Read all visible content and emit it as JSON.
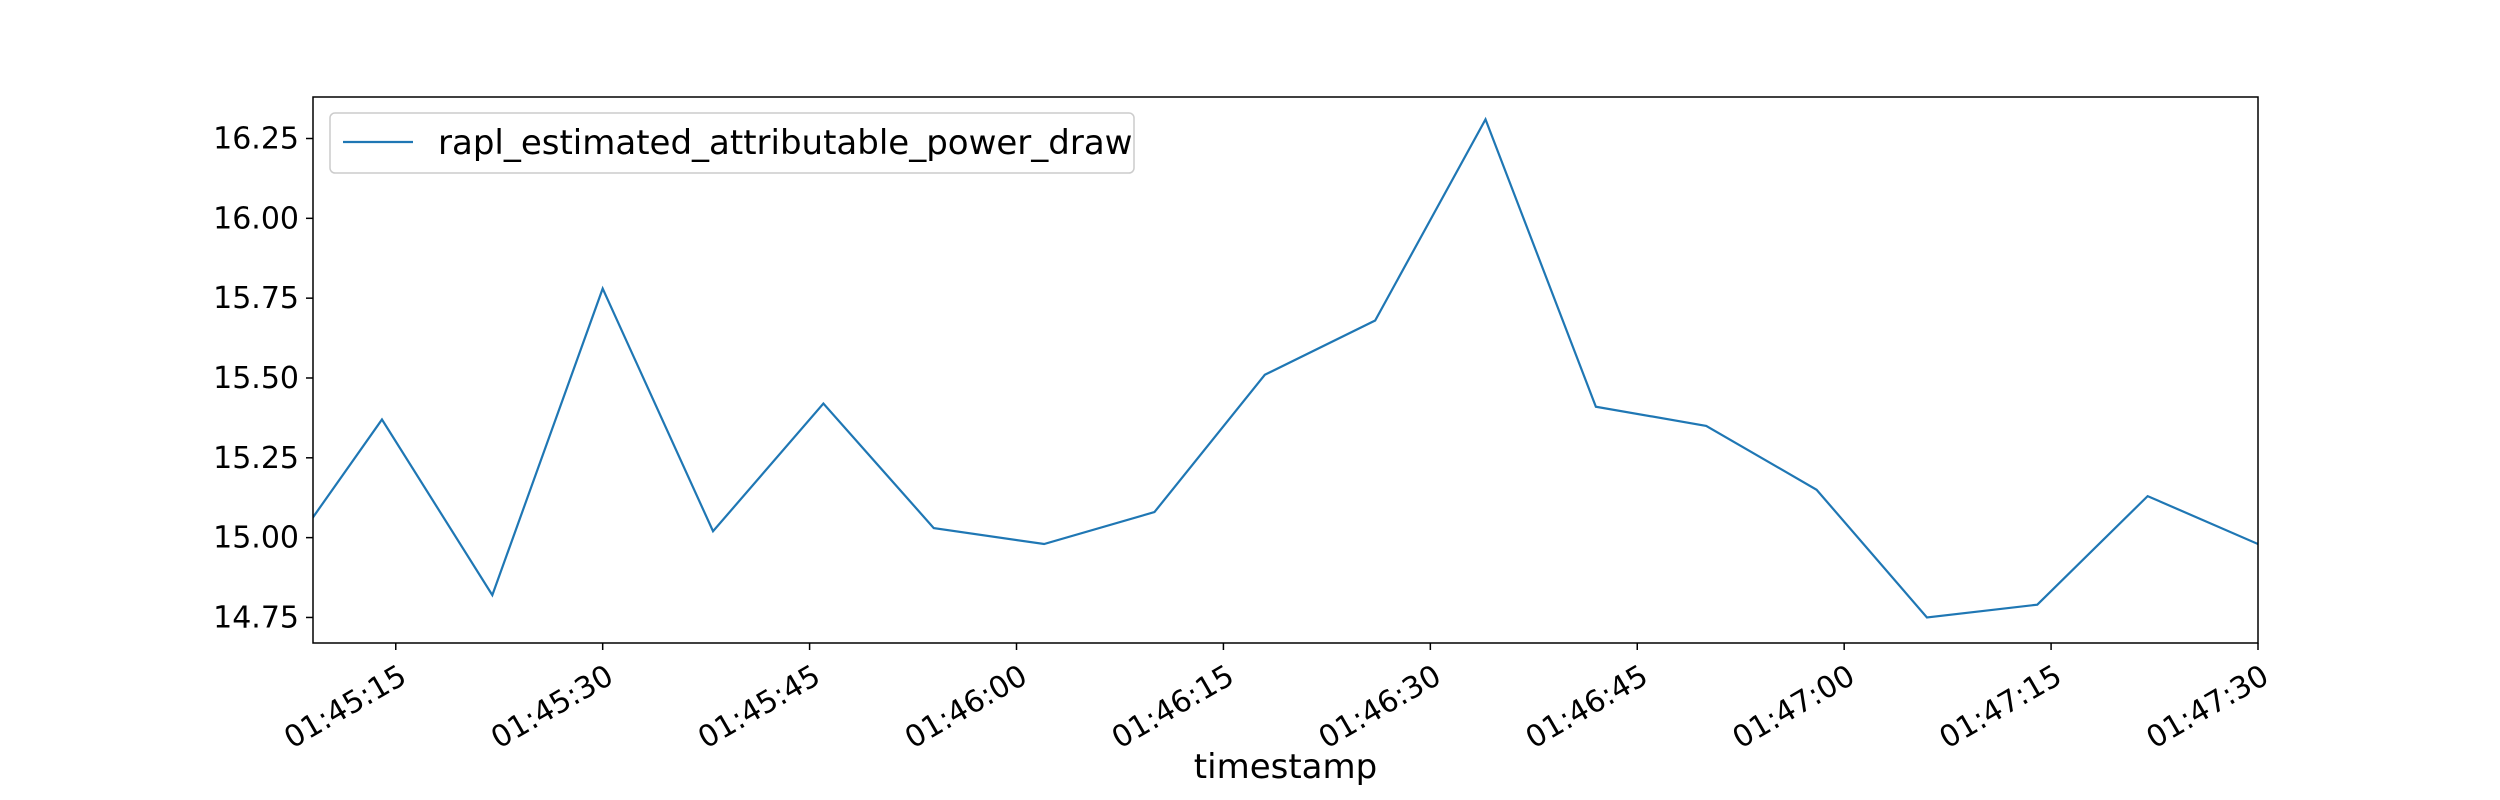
{
  "chart_data": {
    "type": "line",
    "xlabel": "timestamp",
    "ylabel": "",
    "x_unit": "time (HH:MM:SS)",
    "xlim": [
      "01:45:09",
      "01:47:30"
    ],
    "ylim": [
      14.67,
      16.38
    ],
    "x_ticks": [
      "01:45:15",
      "01:45:30",
      "01:45:45",
      "01:46:00",
      "01:46:15",
      "01:46:30",
      "01:46:45",
      "01:47:00",
      "01:47:15",
      "01:47:30"
    ],
    "y_ticks": [
      "14.75",
      "15.00",
      "15.25",
      "15.50",
      "15.75",
      "16.00",
      "16.25"
    ],
    "grid": false,
    "legend_position": "top-left",
    "color": "#1f77b4",
    "series": [
      {
        "name": "rapl_estimated_attributable_power_draw",
        "points": [
          {
            "x": "01:45:06",
            "y": 14.88
          },
          {
            "x": "01:45:14",
            "y": 15.37
          },
          {
            "x": "01:45:22",
            "y": 14.82
          },
          {
            "x": "01:45:30",
            "y": 15.78
          },
          {
            "x": "01:45:38",
            "y": 15.02
          },
          {
            "x": "01:45:46",
            "y": 15.42
          },
          {
            "x": "01:45:54",
            "y": 15.03
          },
          {
            "x": "01:46:02",
            "y": 14.98
          },
          {
            "x": "01:46:10",
            "y": 15.08
          },
          {
            "x": "01:46:18",
            "y": 15.51
          },
          {
            "x": "01:46:26",
            "y": 15.68
          },
          {
            "x": "01:46:34",
            "y": 16.31
          },
          {
            "x": "01:46:42",
            "y": 15.41
          },
          {
            "x": "01:46:50",
            "y": 15.35
          },
          {
            "x": "01:46:58",
            "y": 15.15
          },
          {
            "x": "01:47:06",
            "y": 14.75
          },
          {
            "x": "01:47:14",
            "y": 14.79
          },
          {
            "x": "01:47:22",
            "y": 15.13
          },
          {
            "x": "01:47:30",
            "y": 14.98
          }
        ]
      }
    ]
  }
}
